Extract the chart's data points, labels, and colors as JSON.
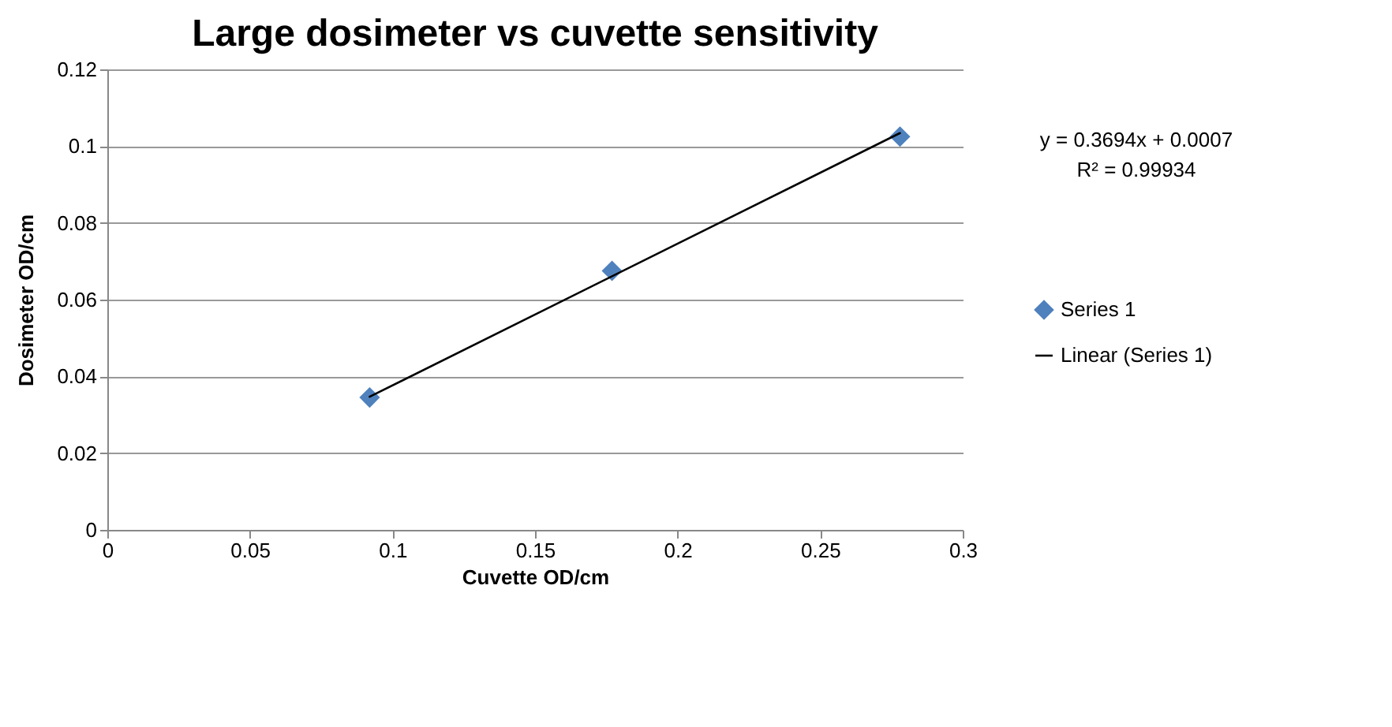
{
  "chart_data": {
    "type": "scatter",
    "title": "Large dosimeter vs cuvette sensitivity",
    "xlabel": "Cuvette OD/cm",
    "ylabel": "Dosimeter OD/cm",
    "x": [
      0.092,
      0.177,
      0.278
    ],
    "series": [
      {
        "name": "Series 1",
        "color": "#4f81bd",
        "values": [
          0.0345,
          0.0675,
          0.1025
        ],
        "marker": "diamond"
      },
      {
        "name": "Linear (Series 1)",
        "type": "line",
        "color": "#000000",
        "x": [
          0.092,
          0.278
        ],
        "values": [
          0.0347,
          0.1034
        ],
        "marker": "none",
        "line_style": "solid"
      }
    ],
    "annotations": [
      "y = 0.3694x + 0.0007",
      "R² = 0.99934"
    ],
    "xlim": [
      0,
      0.3
    ],
    "xticks": [
      0,
      0.05,
      0.1,
      0.15,
      0.2,
      0.25,
      0.3
    ],
    "ylim": [
      0,
      0.12
    ],
    "yticks": [
      0,
      0.02,
      0.04,
      0.06,
      0.08,
      0.1,
      0.12
    ],
    "grid": "y",
    "legend": "right"
  }
}
